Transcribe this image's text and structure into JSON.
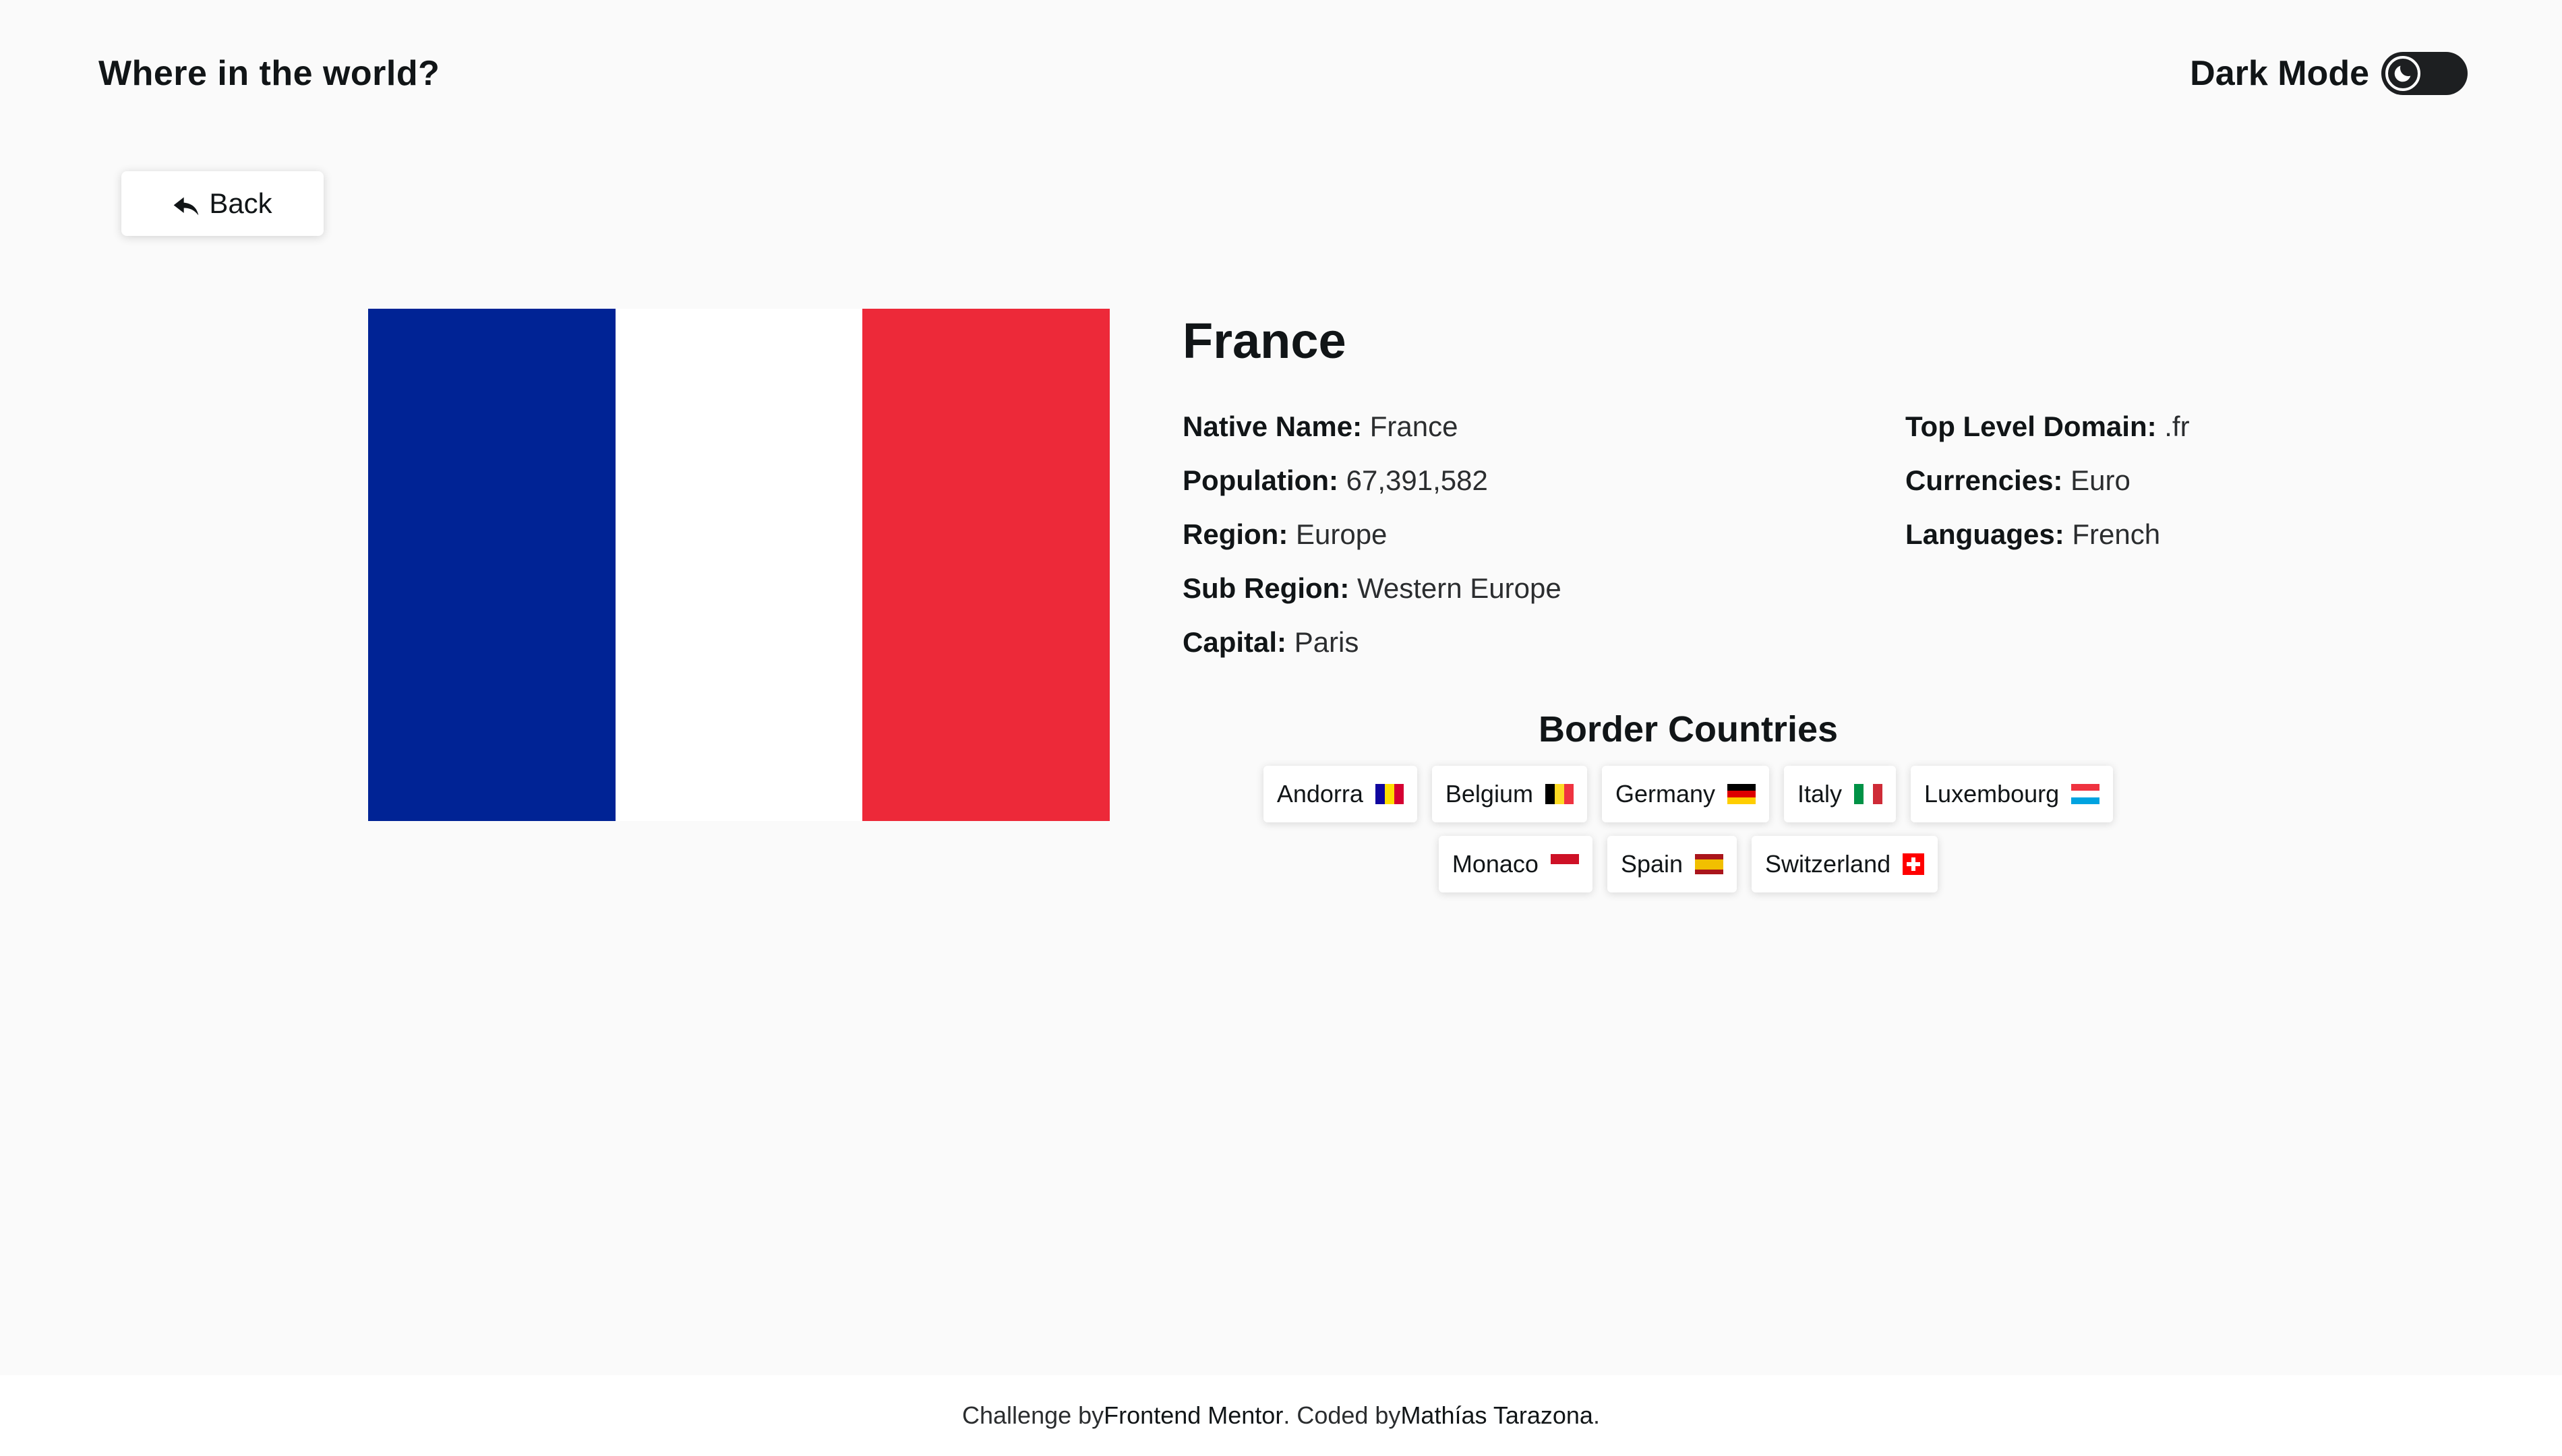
{
  "header": {
    "title": "Where in the world?",
    "theme_label": "Dark Mode",
    "theme_icon": "moon-icon"
  },
  "back_button": {
    "label": "Back",
    "icon": "back-arrow-icon"
  },
  "country": {
    "name": "France",
    "flag_colors": [
      "#002395",
      "#ffffff",
      "#ED2939"
    ],
    "info_left": [
      {
        "label": "Native Name:",
        "value": "France"
      },
      {
        "label": "Population:",
        "value": "67,391,582"
      },
      {
        "label": "Region:",
        "value": "Europe"
      },
      {
        "label": "Sub Region:",
        "value": "Western Europe"
      },
      {
        "label": "Capital:",
        "value": "Paris"
      }
    ],
    "info_right": [
      {
        "label": "Top Level Domain:",
        "value": ".fr"
      },
      {
        "label": "Currencies:",
        "value": "Euro"
      },
      {
        "label": "Languages:",
        "value": "French"
      }
    ]
  },
  "border": {
    "title": "Border Countries",
    "countries": [
      {
        "name": "Andorra",
        "flag": [
          "#10069F",
          "#FEDD00",
          "#D50032"
        ],
        "dir": "v"
      },
      {
        "name": "Belgium",
        "flag": [
          "#000000",
          "#FDDA24",
          "#EF3340"
        ],
        "dir": "v"
      },
      {
        "name": "Germany",
        "flag": [
          "#000000",
          "#DD0000",
          "#FFCE00"
        ],
        "dir": "h"
      },
      {
        "name": "Italy",
        "flag": [
          "#009246",
          "#ffffff",
          "#CE2B37"
        ],
        "dir": "v"
      },
      {
        "name": "Luxembourg",
        "flag": [
          "#EF3340",
          "#ffffff",
          "#00A3E0"
        ],
        "dir": "h"
      },
      {
        "name": "Monaco",
        "flag": [
          "#CE1126",
          "#ffffff"
        ],
        "dir": "h"
      },
      {
        "name": "Spain",
        "flag": [
          "#AA151B",
          "#F1BF00",
          "#F1BF00",
          "#AA151B"
        ],
        "dir": "h"
      },
      {
        "name": "Switzerland",
        "flag": [
          "#FF0000"
        ],
        "dir": "swiss"
      }
    ]
  },
  "footer": {
    "prefix": "Challenge by ",
    "link1": "Frontend Mentor",
    "middle": ". Coded by ",
    "link2": "Mathías Tarazona",
    "suffix": "."
  }
}
